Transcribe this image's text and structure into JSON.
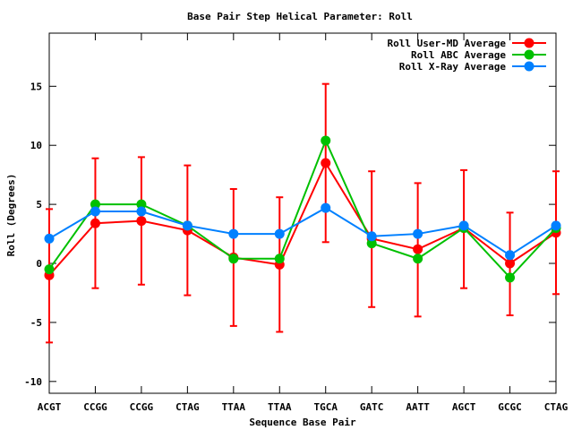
{
  "chart_data": {
    "type": "line",
    "title": "Base Pair Step Helical Parameter: Roll",
    "xlabel": "Sequence Base Pair",
    "ylabel": "Roll (Degrees)",
    "categories": [
      "ACGT",
      "CCGG",
      "CCGG",
      "CTAG",
      "TTAA",
      "TTAA",
      "TGCA",
      "GATC",
      "AATT",
      "AGCT",
      "GCGC",
      "CTAG"
    ],
    "ylim": [
      -11,
      19.5
    ],
    "yticks": [
      -10,
      -5,
      0,
      5,
      10,
      15
    ],
    "ytick_labels": [
      "-10",
      "-5",
      "0",
      "5",
      "10",
      "15"
    ],
    "grid": false,
    "legend_position": "top-right",
    "series": [
      {
        "name": "Roll User-MD Average",
        "color": "#ff0000",
        "values": [
          -1.0,
          3.4,
          3.6,
          2.8,
          0.5,
          -0.1,
          8.5,
          2.1,
          1.2,
          3.0,
          0.0,
          2.6
        ],
        "error_low": [
          -6.7,
          -2.1,
          -1.8,
          -2.7,
          -5.3,
          -5.8,
          1.8,
          -3.7,
          -4.5,
          -2.1,
          -4.4,
          -2.6
        ],
        "error_high": [
          4.6,
          8.9,
          9.0,
          8.3,
          6.3,
          5.6,
          15.2,
          7.8,
          6.8,
          7.9,
          4.3,
          7.8
        ]
      },
      {
        "name": "Roll ABC Average",
        "color": "#00c000",
        "values": [
          -0.5,
          5.0,
          5.0,
          3.2,
          0.4,
          0.4,
          10.4,
          1.7,
          0.4,
          3.0,
          -1.2,
          3.0
        ]
      },
      {
        "name": "Roll X-Ray Average",
        "color": "#0080ff",
        "values": [
          2.1,
          4.4,
          4.4,
          3.2,
          2.5,
          2.5,
          4.7,
          2.3,
          2.5,
          3.2,
          0.7,
          3.2
        ]
      }
    ]
  }
}
